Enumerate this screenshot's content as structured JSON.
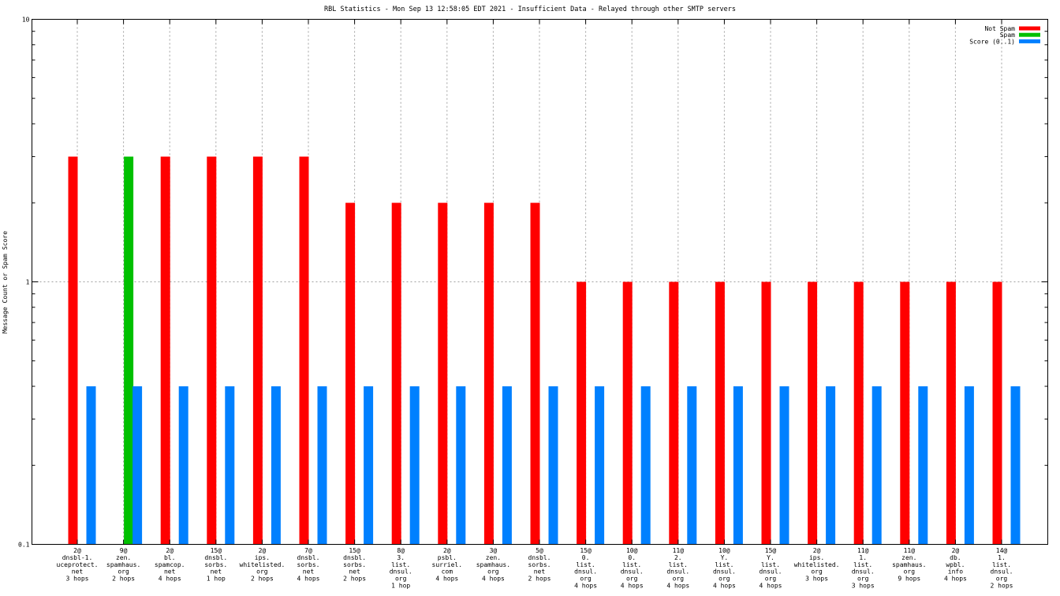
{
  "chart_data": {
    "type": "bar",
    "title": "RBL Statistics - Mon Sep 13 12:58:05 EDT 2021 - Insufficient Data - Relayed through other SMTP servers",
    "xlabel": "",
    "ylabel": "Message Count or Spam Score",
    "yscale": "log",
    "ylim": [
      0.1,
      10
    ],
    "yticks": [
      "10",
      "1",
      "0.1"
    ],
    "grid": true,
    "legend_position": "top-right",
    "categories": [
      [
        "2@",
        "dnsbl-1.",
        "uceprotect.",
        "net",
        "3 hops"
      ],
      [
        "9@",
        "zen.",
        "spamhaus.",
        "org",
        "2 hops"
      ],
      [
        "2@",
        "bl.",
        "spamcop.",
        "net",
        "4 hops"
      ],
      [
        "15@",
        "dnsbl.",
        "sorbs.",
        "net",
        "1 hop"
      ],
      [
        "2@",
        "ips.",
        "whitelisted.",
        "org",
        "2 hops"
      ],
      [
        "7@",
        "dnsbl.",
        "sorbs.",
        "net",
        "4 hops"
      ],
      [
        "15@",
        "dnsbl.",
        "sorbs.",
        "net",
        "2 hops"
      ],
      [
        "8@",
        "3.",
        "list.",
        "dnsul.",
        "org",
        "1 hop"
      ],
      [
        "2@",
        "psbl.",
        "surriel.",
        "com",
        "4 hops"
      ],
      [
        "3@",
        "zen.",
        "spamhaus.",
        "org",
        "4 hops"
      ],
      [
        "5@",
        "dnsbl.",
        "sorbs.",
        "net",
        "2 hops"
      ],
      [
        "15@",
        "0.",
        "list.",
        "dnsul.",
        "org",
        "4 hops"
      ],
      [
        "10@",
        "0.",
        "list.",
        "dnsul.",
        "org",
        "4 hops"
      ],
      [
        "11@",
        "2.",
        "list.",
        "dnsul.",
        "org",
        "4 hops"
      ],
      [
        "10@",
        "Y.",
        "list.",
        "dnsul.",
        "org",
        "4 hops"
      ],
      [
        "15@",
        "Y.",
        "list.",
        "dnsul.",
        "org",
        "4 hops"
      ],
      [
        "2@",
        "ips.",
        "whitelisted.",
        "org",
        "3 hops"
      ],
      [
        "11@",
        "1.",
        "list.",
        "dnsul.",
        "org",
        "3 hops"
      ],
      [
        "11@",
        "zen.",
        "spamhaus.",
        "org",
        "9 hops"
      ],
      [
        "2@",
        "db.",
        "wpbl.",
        "info",
        "4 hops"
      ],
      [
        "14@",
        "1.",
        "list.",
        "dnsul.",
        "org",
        "2 hops"
      ]
    ],
    "series": [
      {
        "name": "Not Spam",
        "color": "#ff0000",
        "values": [
          3,
          0,
          3,
          3,
          3,
          3,
          2,
          2,
          2,
          2,
          2,
          1,
          1,
          1,
          1,
          1,
          1,
          1,
          1,
          1,
          1
        ]
      },
      {
        "name": "Spam",
        "color": "#00c000",
        "values": [
          0,
          3,
          0,
          0,
          0,
          0,
          0,
          0,
          0,
          0,
          0,
          0,
          0,
          0,
          0,
          0,
          0,
          0,
          0,
          0,
          0
        ]
      },
      {
        "name": "Score (0..1)",
        "color": "#0080ff",
        "values": [
          0.4,
          0.4,
          0.4,
          0.4,
          0.4,
          0.4,
          0.4,
          0.4,
          0.4,
          0.4,
          0.4,
          0.4,
          0.4,
          0.4,
          0.4,
          0.4,
          0.4,
          0.4,
          0.4,
          0.4,
          0.4
        ]
      }
    ]
  }
}
